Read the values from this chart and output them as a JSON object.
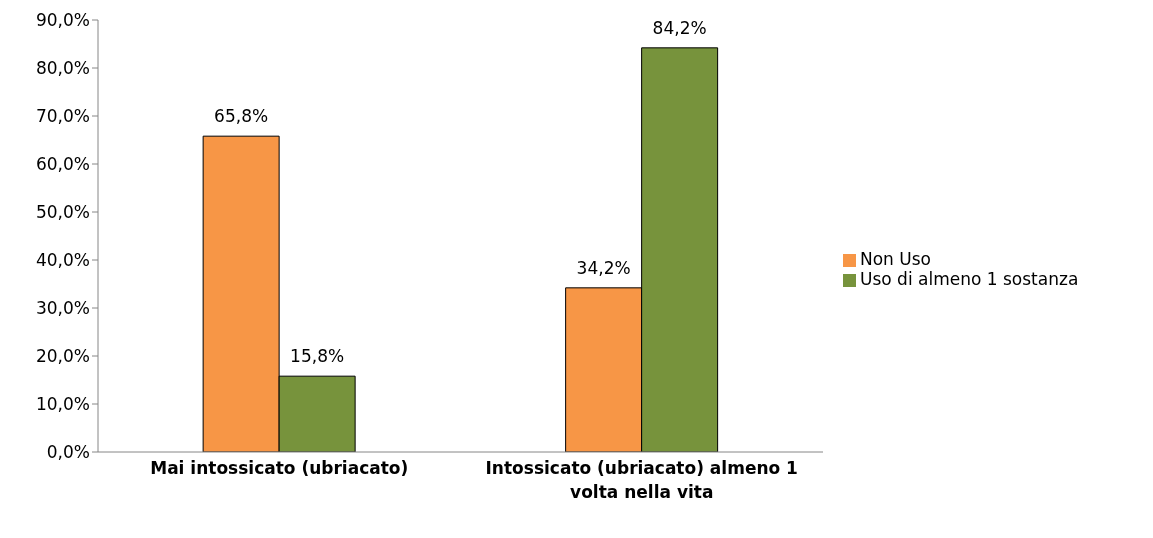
{
  "chart_data": {
    "type": "bar",
    "categories": [
      "Mai intossicato  (ubriacato)",
      "Intossicato (ubriacato) almeno 1 volta nella vita"
    ],
    "series": [
      {
        "name": "Non Uso",
        "color": "#f79646",
        "values": [
          65.8,
          34.2
        ],
        "value_labels": [
          "65,8%",
          "34,2%"
        ]
      },
      {
        "name": "Uso di almeno 1 sostanza",
        "color": "#77933c",
        "values": [
          15.8,
          84.2
        ],
        "value_labels": [
          "15,8%",
          "84,2%"
        ]
      }
    ],
    "ylim": [
      0,
      90
    ],
    "yticks": [
      {
        "value": 0,
        "label": "0,0%"
      },
      {
        "value": 10,
        "label": "10,0%"
      },
      {
        "value": 20,
        "label": "20,0%"
      },
      {
        "value": 30,
        "label": "30,0%"
      },
      {
        "value": 40,
        "label": "40,0%"
      },
      {
        "value": 50,
        "label": "50,0%"
      },
      {
        "value": 60,
        "label": "60,0%"
      },
      {
        "value": 70,
        "label": "70,0%"
      },
      {
        "value": 80,
        "label": "80,0%"
      },
      {
        "value": 90,
        "label": "90,0%"
      }
    ],
    "grid": false,
    "legend": "right"
  }
}
